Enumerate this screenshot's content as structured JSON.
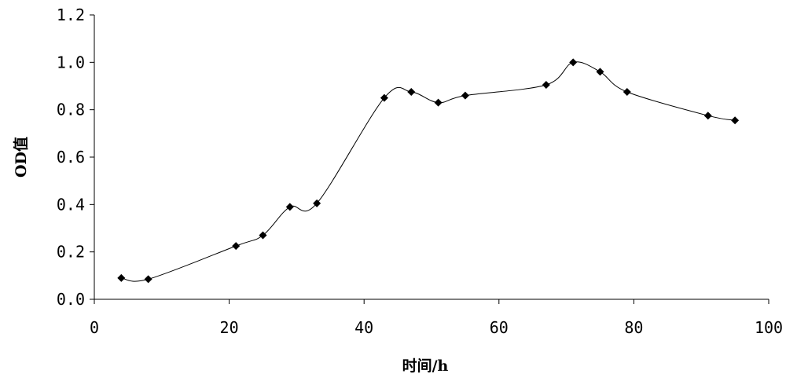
{
  "chart_data": {
    "type": "line",
    "title": "",
    "xlabel": "时间/h",
    "ylabel": "OD值",
    "xlim": [
      0,
      100
    ],
    "ylim": [
      0.0,
      1.2
    ],
    "xticks": [
      "0",
      "20",
      "40",
      "60",
      "80",
      "100"
    ],
    "yticks": [
      "0.0",
      "0.2",
      "0.4",
      "0.6",
      "0.8",
      "1.0",
      "1.2"
    ],
    "grid": false,
    "legend": "none",
    "smooth": true,
    "marker": "diamond",
    "colors": {
      "line": "#000000",
      "marker": "#000000",
      "axis": "#000000"
    },
    "series": [
      {
        "x": [
          4,
          8,
          21,
          25,
          29,
          33,
          43,
          47,
          51,
          55,
          67,
          71,
          75,
          79,
          91,
          95
        ],
        "y": [
          0.09,
          0.085,
          0.225,
          0.27,
          0.39,
          0.405,
          0.85,
          0.875,
          0.83,
          0.86,
          0.905,
          1.0,
          0.96,
          0.875,
          0.775,
          0.755
        ]
      }
    ]
  }
}
